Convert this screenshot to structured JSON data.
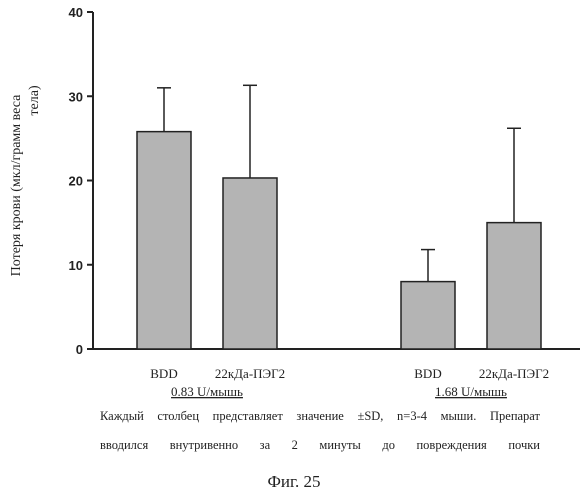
{
  "chart_data": {
    "type": "bar",
    "ylabel": "Потеря крови (мкл/грамм веса тела)",
    "ylabel_lines": [
      "Потеря крови (мкл/грамм веса",
      "тела)"
    ],
    "ylim": [
      0,
      40
    ],
    "yticks": [
      0,
      10,
      20,
      30,
      40
    ],
    "bar_color": "#b4b4b4",
    "bars": [
      {
        "category": "BDD",
        "group": "0.83 U/мышь",
        "value": 25.8,
        "sd_upper": 31.0
      },
      {
        "category": "22кДа-ПЭГ2",
        "group": "0.83 U/мышь",
        "value": 20.3,
        "sd_upper": 31.3
      },
      {
        "category": "BDD",
        "group": "1.68 U/мышь",
        "value": 8.0,
        "sd_upper": 11.8
      },
      {
        "category": "22кДа-ПЭГ2",
        "group": "1.68 U/мышь",
        "value": 15.0,
        "sd_upper": 26.2
      }
    ],
    "groups": [
      "0.83 U/мышь",
      "1.68 U/мышь"
    ]
  },
  "note_line1": "Каждый столбец представляет значение ±SD, n=3-4 мыши. Препарат",
  "note_line2": "вводился внутривенно за 2 минуты до повреждения почки",
  "figure_caption": "Фиг. 25"
}
